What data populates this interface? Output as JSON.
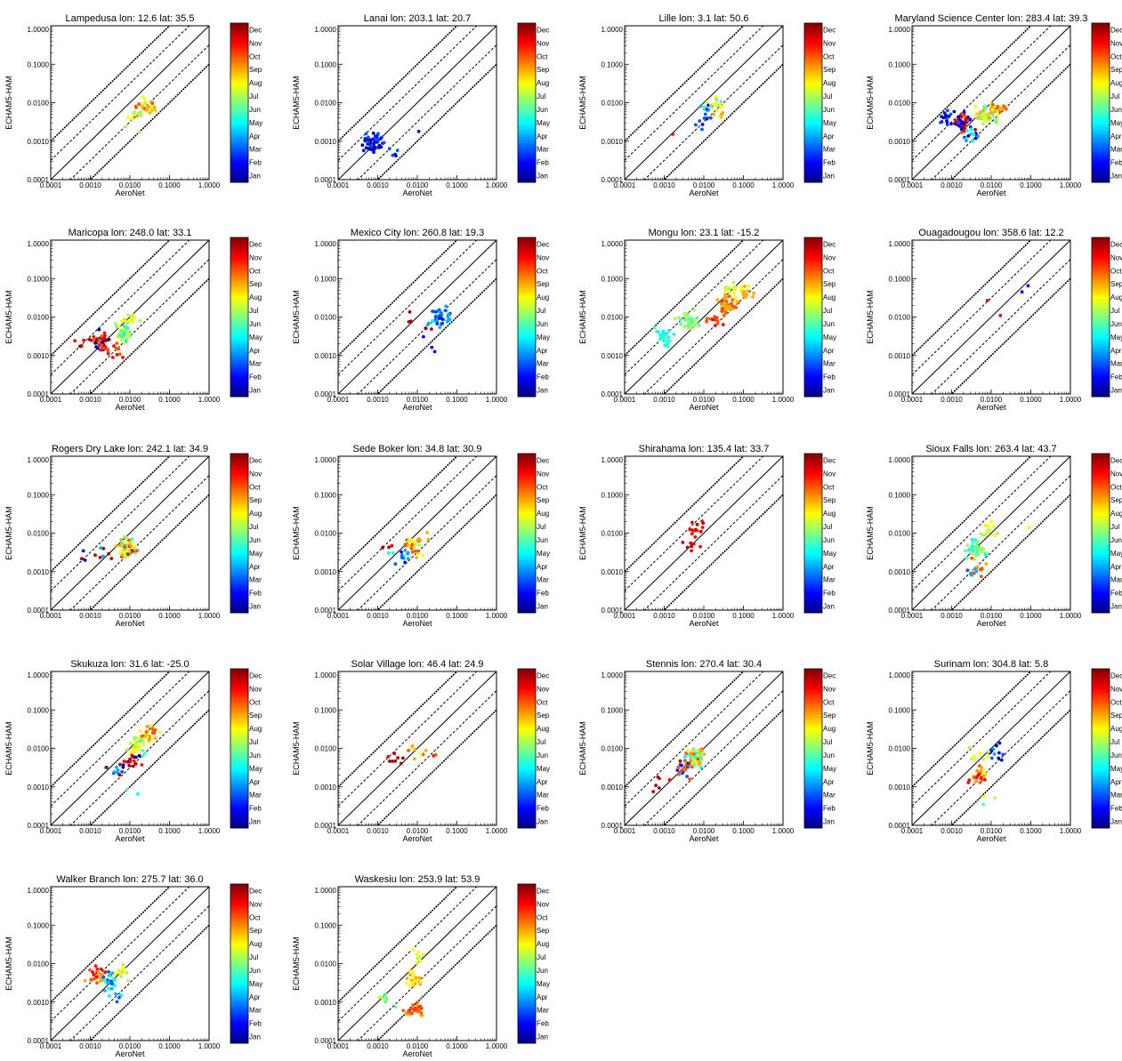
{
  "figure": {
    "xlabel": "AeroNet",
    "ylabel": "ECHAM5-HAM",
    "tick_labels": [
      "0.0001",
      "0.0010",
      "0.0100",
      "0.1000",
      "1.0000"
    ],
    "colorbar_labels": [
      "Jan",
      "Feb",
      "Mar",
      "Apr",
      "May",
      "Jun",
      "Jul",
      "Aug",
      "Sep",
      "Oct",
      "Nov",
      "Dec"
    ]
  },
  "chart_data": [
    {
      "type": "scatter",
      "title": "Lampedusa   lon: 12.6 lat: 35.5",
      "xscale": "log",
      "yscale": "log",
      "xlim": [
        0.0001,
        1
      ],
      "ylim": [
        0.0001,
        1
      ],
      "color_by": "month",
      "clusters": [
        {
          "x": 0.012,
          "y": 0.005,
          "n": 4,
          "months": [
            7
          ]
        },
        {
          "x": 0.02,
          "y": 0.007,
          "n": 12,
          "months": [
            6,
            7
          ]
        },
        {
          "x": 0.035,
          "y": 0.009,
          "n": 12,
          "months": [
            7,
            8
          ]
        },
        {
          "x": 0.02,
          "y": 0.0065,
          "n": 10,
          "months": [
            8,
            9
          ]
        },
        {
          "x": 0.009,
          "y": 0.0017,
          "n": 1,
          "months": [
            6
          ]
        },
        {
          "x": 0.012,
          "y": 0.0013,
          "n": 1,
          "months": [
            6
          ]
        }
      ]
    },
    {
      "type": "scatter",
      "title": "Lanai   lon: 203.1 lat: 20.7",
      "xscale": "log",
      "yscale": "log",
      "xlim": [
        0.0001,
        1
      ],
      "ylim": [
        0.0001,
        1
      ],
      "color_by": "month",
      "clusters": [
        {
          "x": 0.0008,
          "y": 0.0009,
          "n": 55,
          "months": [
            0,
            1,
            2
          ]
        },
        {
          "x": 0.0025,
          "y": 0.0005,
          "n": 5,
          "months": [
            1,
            2
          ]
        },
        {
          "x": 0.008,
          "y": 0.002,
          "n": 1,
          "months": [
            1
          ]
        }
      ]
    },
    {
      "type": "scatter",
      "title": "Lille   lon: 3.1 lat: 50.6",
      "xscale": "log",
      "yscale": "log",
      "xlim": [
        0.0001,
        1
      ],
      "ylim": [
        0.0001,
        1
      ],
      "color_by": "month",
      "clusters": [
        {
          "x": 0.012,
          "y": 0.007,
          "n": 12,
          "months": [
            1,
            2,
            3
          ]
        },
        {
          "x": 0.02,
          "y": 0.009,
          "n": 12,
          "months": [
            5,
            6,
            7
          ]
        },
        {
          "x": 0.008,
          "y": 0.003,
          "n": 6,
          "months": [
            1,
            2
          ]
        },
        {
          "x": 0.002,
          "y": 0.002,
          "n": 1,
          "months": [
            10
          ]
        },
        {
          "x": 0.025,
          "y": 0.006,
          "n": 6,
          "months": [
            7,
            8
          ]
        }
      ]
    },
    {
      "type": "scatter",
      "title": "Maryland Science Center   lon: 283.4 lat: 39.3",
      "xscale": "log",
      "yscale": "log",
      "xlim": [
        0.0001,
        1
      ],
      "ylim": [
        0.0001,
        1
      ],
      "color_by": "month",
      "clusters": [
        {
          "x": 0.002,
          "y": 0.003,
          "n": 45,
          "months": [
            11,
            10,
            9,
            0,
            1
          ]
        },
        {
          "x": 0.007,
          "y": 0.005,
          "n": 50,
          "months": [
            5,
            6,
            7,
            8
          ]
        },
        {
          "x": 0.0008,
          "y": 0.004,
          "n": 18,
          "months": [
            0,
            1,
            2
          ]
        },
        {
          "x": 0.015,
          "y": 0.007,
          "n": 25,
          "months": [
            6,
            7,
            8,
            9
          ]
        },
        {
          "x": 0.003,
          "y": 0.0015,
          "n": 15,
          "months": [
            0,
            1,
            3,
            4
          ]
        }
      ]
    },
    {
      "type": "scatter",
      "title": "Maricopa   lon: 248.0 lat: 33.1",
      "xscale": "log",
      "yscale": "log",
      "xlim": [
        0.0001,
        1
      ],
      "ylim": [
        0.0001,
        1
      ],
      "color_by": "month",
      "clusters": [
        {
          "x": 0.002,
          "y": 0.0025,
          "n": 40,
          "months": [
            10,
            11,
            0,
            9
          ]
        },
        {
          "x": 0.007,
          "y": 0.004,
          "n": 40,
          "months": [
            4,
            5,
            6,
            7
          ]
        },
        {
          "x": 0.0005,
          "y": 0.002,
          "n": 6,
          "months": [
            11,
            10
          ]
        },
        {
          "x": 0.01,
          "y": 0.008,
          "n": 15,
          "months": [
            6,
            7
          ]
        },
        {
          "x": 0.004,
          "y": 0.0012,
          "n": 10,
          "months": [
            9,
            10
          ]
        }
      ]
    },
    {
      "type": "scatter",
      "title": "Mexico City   lon: 260.8 lat: 19.3",
      "xscale": "log",
      "yscale": "log",
      "xlim": [
        0.0001,
        1
      ],
      "ylim": [
        0.0001,
        1
      ],
      "color_by": "month",
      "clusters": [
        {
          "x": 0.04,
          "y": 0.01,
          "n": 35,
          "months": [
            1,
            2,
            3
          ]
        },
        {
          "x": 0.025,
          "y": 0.005,
          "n": 8,
          "months": [
            3,
            4,
            11
          ]
        },
        {
          "x": 0.006,
          "y": 0.01,
          "n": 3,
          "months": [
            11
          ]
        },
        {
          "x": 0.02,
          "y": 0.002,
          "n": 3,
          "months": [
            1,
            2
          ]
        }
      ]
    },
    {
      "type": "scatter",
      "title": "Mongu   lon: 23.1 lat: -15.2",
      "xscale": "log",
      "yscale": "log",
      "xlim": [
        0.0001,
        1
      ],
      "ylim": [
        0.0001,
        1
      ],
      "color_by": "month",
      "clusters": [
        {
          "x": 0.001,
          "y": 0.003,
          "n": 25,
          "months": [
            4,
            5
          ]
        },
        {
          "x": 0.004,
          "y": 0.008,
          "n": 35,
          "months": [
            5,
            6
          ]
        },
        {
          "x": 0.04,
          "y": 0.02,
          "n": 45,
          "months": [
            8,
            9
          ]
        },
        {
          "x": 0.1,
          "y": 0.04,
          "n": 20,
          "months": [
            7,
            8
          ]
        },
        {
          "x": 0.05,
          "y": 0.06,
          "n": 12,
          "months": [
            6,
            7
          ]
        },
        {
          "x": 0.02,
          "y": 0.008,
          "n": 15,
          "months": [
            9,
            10
          ]
        }
      ]
    },
    {
      "type": "scatter",
      "title": "Ouagadougou   lon: 358.6 lat: 12.2",
      "xscale": "log",
      "yscale": "log",
      "xlim": [
        0.0001,
        1
      ],
      "ylim": [
        0.0001,
        1
      ],
      "color_by": "month",
      "points": [
        {
          "x": 0.008,
          "y": 0.027,
          "month": 10
        },
        {
          "x": 0.017,
          "y": 0.011,
          "month": 10
        },
        {
          "x": 0.06,
          "y": 0.045,
          "month": 1
        },
        {
          "x": 0.085,
          "y": 0.065,
          "month": 1
        }
      ]
    },
    {
      "type": "scatter",
      "title": "Rogers Dry Lake   lon: 242.1 lat: 34.9",
      "xscale": "log",
      "yscale": "log",
      "xlim": [
        0.0001,
        1
      ],
      "ylim": [
        0.0001,
        1
      ],
      "color_by": "month",
      "clusters": [
        {
          "x": 0.009,
          "y": 0.004,
          "n": 60,
          "months": [
            5,
            6,
            7,
            8,
            9,
            10
          ]
        },
        {
          "x": 0.002,
          "y": 0.003,
          "n": 8,
          "months": [
            2,
            3,
            11
          ]
        },
        {
          "x": 0.0006,
          "y": 0.0025,
          "n": 3,
          "months": [
            1,
            11
          ]
        }
      ]
    },
    {
      "type": "scatter",
      "title": "Sede Boker   lon: 34.8 lat: 30.9",
      "xscale": "log",
      "yscale": "log",
      "xlim": [
        0.0001,
        1
      ],
      "ylim": [
        0.0001,
        1
      ],
      "color_by": "month",
      "clusters": [
        {
          "x": 0.008,
          "y": 0.0045,
          "n": 25,
          "months": [
            6,
            7,
            8,
            9
          ]
        },
        {
          "x": 0.004,
          "y": 0.0025,
          "n": 12,
          "months": [
            1,
            2,
            3,
            4
          ]
        },
        {
          "x": 0.002,
          "y": 0.004,
          "n": 6,
          "months": [
            10,
            11,
            4
          ]
        },
        {
          "x": 0.012,
          "y": 0.008,
          "n": 6,
          "months": [
            7,
            8
          ]
        }
      ]
    },
    {
      "type": "scatter",
      "title": "Shirahama   lon: 135.4 lat: 33.7",
      "xscale": "log",
      "yscale": "log",
      "xlim": [
        0.0001,
        1
      ],
      "ylim": [
        0.0001,
        1
      ],
      "color_by": "month",
      "clusters": [
        {
          "x": 0.006,
          "y": 0.012,
          "n": 15,
          "months": [
            10,
            11
          ]
        },
        {
          "x": 0.005,
          "y": 0.005,
          "n": 8,
          "months": [
            10,
            11
          ]
        }
      ]
    },
    {
      "type": "scatter",
      "title": "Sioux Falls   lon: 263.4 lat: 43.7",
      "xscale": "log",
      "yscale": "log",
      "xlim": [
        0.0001,
        1
      ],
      "ylim": [
        0.0001,
        1
      ],
      "color_by": "month",
      "clusters": [
        {
          "x": 0.004,
          "y": 0.004,
          "n": 45,
          "months": [
            4,
            5,
            6
          ]
        },
        {
          "x": 0.004,
          "y": 0.0012,
          "n": 15,
          "months": [
            8,
            9,
            2,
            3
          ]
        },
        {
          "x": 0.008,
          "y": 0.012,
          "n": 15,
          "months": [
            6,
            7
          ]
        },
        {
          "x": 0.1,
          "y": 0.013,
          "n": 1,
          "months": [
            7
          ]
        }
      ]
    },
    {
      "type": "scatter",
      "title": "Skukuza   lon: 31.6 lat: -25.0",
      "xscale": "log",
      "yscale": "log",
      "xlim": [
        0.0001,
        1
      ],
      "ylim": [
        0.0001,
        1
      ],
      "color_by": "month",
      "clusters": [
        {
          "x": 0.015,
          "y": 0.012,
          "n": 40,
          "months": [
            5,
            6,
            7
          ]
        },
        {
          "x": 0.03,
          "y": 0.025,
          "n": 25,
          "months": [
            7,
            8,
            9
          ]
        },
        {
          "x": 0.01,
          "y": 0.005,
          "n": 20,
          "months": [
            10,
            11,
            0
          ]
        },
        {
          "x": 0.004,
          "y": 0.003,
          "n": 10,
          "months": [
            2,
            3,
            11
          ]
        },
        {
          "x": 0.012,
          "y": 0.0008,
          "n": 2,
          "months": [
            4,
            5
          ]
        }
      ]
    },
    {
      "type": "scatter",
      "title": "Solar Village   lon: 46.4 lat: 24.9",
      "xscale": "log",
      "yscale": "log",
      "xlim": [
        0.0001,
        1
      ],
      "ylim": [
        0.0001,
        1
      ],
      "color_by": "month",
      "clusters": [
        {
          "x": 0.003,
          "y": 0.005,
          "n": 8,
          "months": [
            10,
            11
          ]
        },
        {
          "x": 0.01,
          "y": 0.008,
          "n": 8,
          "months": [
            7,
            8,
            9
          ]
        },
        {
          "x": 0.03,
          "y": 0.008,
          "n": 2,
          "months": [
            9,
            10
          ]
        }
      ]
    },
    {
      "type": "scatter",
      "title": "Stennis   lon: 270.4 lat: 30.4",
      "xscale": "log",
      "yscale": "log",
      "xlim": [
        0.0001,
        1
      ],
      "ylim": [
        0.0001,
        1
      ],
      "color_by": "month",
      "clusters": [
        {
          "x": 0.006,
          "y": 0.006,
          "n": 80,
          "months": [
            4,
            5,
            6,
            7,
            8,
            9
          ]
        },
        {
          "x": 0.003,
          "y": 0.003,
          "n": 20,
          "months": [
            9,
            10,
            11,
            1,
            2
          ]
        },
        {
          "x": 0.0008,
          "y": 0.0012,
          "n": 6,
          "months": [
            10,
            11
          ]
        }
      ]
    },
    {
      "type": "scatter",
      "title": "Surinam   lon: 304.8 lat: 5.8",
      "xscale": "log",
      "yscale": "log",
      "xlim": [
        0.0001,
        1
      ],
      "ylim": [
        0.0001,
        1
      ],
      "color_by": "month",
      "clusters": [
        {
          "x": 0.005,
          "y": 0.002,
          "n": 25,
          "months": [
            7,
            8,
            9,
            10
          ]
        },
        {
          "x": 0.015,
          "y": 0.008,
          "n": 12,
          "months": [
            0,
            1,
            2,
            3
          ]
        },
        {
          "x": 0.005,
          "y": 0.006,
          "n": 8,
          "months": [
            6,
            7
          ]
        },
        {
          "x": 0.01,
          "y": 0.0005,
          "n": 3,
          "months": [
            5,
            6,
            7
          ]
        }
      ]
    },
    {
      "type": "scatter",
      "title": "Walker Branch   lon: 275.7 lat: 36.0",
      "xscale": "log",
      "yscale": "log",
      "xlim": [
        0.0001,
        1
      ],
      "ylim": [
        0.0001,
        1
      ],
      "color_by": "month",
      "clusters": [
        {
          "x": 0.0015,
          "y": 0.005,
          "n": 30,
          "months": [
            8,
            9,
            10
          ]
        },
        {
          "x": 0.003,
          "y": 0.0035,
          "n": 25,
          "months": [
            2,
            3,
            4,
            5
          ]
        },
        {
          "x": 0.006,
          "y": 0.006,
          "n": 15,
          "months": [
            6,
            7
          ]
        },
        {
          "x": 0.004,
          "y": 0.0015,
          "n": 8,
          "months": [
            2,
            3,
            4
          ]
        }
      ]
    },
    {
      "type": "scatter",
      "title": "Waskesiu   lon: 253.9 lat: 53.9",
      "xscale": "log",
      "yscale": "log",
      "xlim": [
        0.0001,
        1
      ],
      "ylim": [
        0.0001,
        1
      ],
      "color_by": "month",
      "clusters": [
        {
          "x": 0.008,
          "y": 0.0006,
          "n": 30,
          "months": [
            8,
            9,
            10
          ]
        },
        {
          "x": 0.008,
          "y": 0.004,
          "n": 25,
          "months": [
            7,
            8
          ]
        },
        {
          "x": 0.0015,
          "y": 0.0012,
          "n": 12,
          "months": [
            5,
            6
          ]
        },
        {
          "x": 0.012,
          "y": 0.015,
          "n": 8,
          "months": [
            6,
            7
          ]
        }
      ]
    }
  ]
}
